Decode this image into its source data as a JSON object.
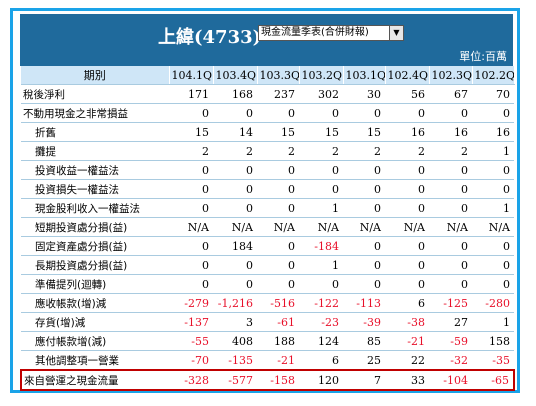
{
  "header": {
    "title": "上緯(4733)",
    "select_value": "現金流量季表(合併財報)",
    "unit": "單位:百萬"
  },
  "table": {
    "columns": [
      "期別",
      "104.1Q",
      "103.4Q",
      "103.3Q",
      "103.2Q",
      "103.1Q",
      "102.4Q",
      "102.3Q",
      "102.2Q"
    ],
    "rows": [
      {
        "label": "稅後淨利",
        "values": [
          "171",
          "168",
          "237",
          "302",
          "30",
          "56",
          "67",
          "70"
        ]
      },
      {
        "label": "不動用現金之非常損益",
        "values": [
          "0",
          "0",
          "0",
          "0",
          "0",
          "0",
          "0",
          "0"
        ]
      },
      {
        "label": "折舊",
        "values": [
          "15",
          "14",
          "15",
          "15",
          "15",
          "16",
          "16",
          "16"
        ]
      },
      {
        "label": "攤提",
        "values": [
          "2",
          "2",
          "2",
          "2",
          "2",
          "2",
          "2",
          "1"
        ]
      },
      {
        "label": "投資收益一權益法",
        "values": [
          "0",
          "0",
          "0",
          "0",
          "0",
          "0",
          "0",
          "0"
        ]
      },
      {
        "label": "投資損失一權益法",
        "values": [
          "0",
          "0",
          "0",
          "0",
          "0",
          "0",
          "0",
          "0"
        ]
      },
      {
        "label": "現金股利收入一權益法",
        "values": [
          "0",
          "0",
          "0",
          "1",
          "0",
          "0",
          "0",
          "1"
        ]
      },
      {
        "label": "短期投資處分損(益)",
        "values": [
          "N/A",
          "N/A",
          "N/A",
          "N/A",
          "N/A",
          "N/A",
          "N/A",
          "N/A"
        ]
      },
      {
        "label": "固定資產處分損(益)",
        "values": [
          "0",
          "184",
          "0",
          "-184",
          "0",
          "0",
          "0",
          "0"
        ]
      },
      {
        "label": "長期投資處分損(益)",
        "values": [
          "0",
          "0",
          "0",
          "1",
          "0",
          "0",
          "0",
          "0"
        ]
      },
      {
        "label": "準備提列(迴轉)",
        "values": [
          "0",
          "0",
          "0",
          "0",
          "0",
          "0",
          "0",
          "0"
        ]
      },
      {
        "label": "應收帳款(增)減",
        "values": [
          "-279",
          "-1,216",
          "-516",
          "-122",
          "-113",
          "6",
          "-125",
          "-280"
        ]
      },
      {
        "label": "存貨(增)減",
        "values": [
          "-137",
          "3",
          "-61",
          "-23",
          "-39",
          "-38",
          "27",
          "1"
        ]
      },
      {
        "label": "應付帳款增(減)",
        "values": [
          "-55",
          "408",
          "188",
          "124",
          "85",
          "-21",
          "-59",
          "158"
        ]
      },
      {
        "label": "其他調整項一營業",
        "values": [
          "-70",
          "-135",
          "-21",
          "6",
          "25",
          "22",
          "-32",
          "-35"
        ]
      },
      {
        "label": "來自營運之現金流量",
        "values": [
          "-328",
          "-577",
          "-158",
          "120",
          "7",
          "33",
          "-104",
          "-65"
        ]
      }
    ]
  },
  "colors": {
    "header_bg": "#1f6a9c",
    "frame_border": "#1aa3e8",
    "column_header_bg": "#cfe6f7",
    "negative": "#e8102a",
    "highlight_border": "#c00000"
  }
}
